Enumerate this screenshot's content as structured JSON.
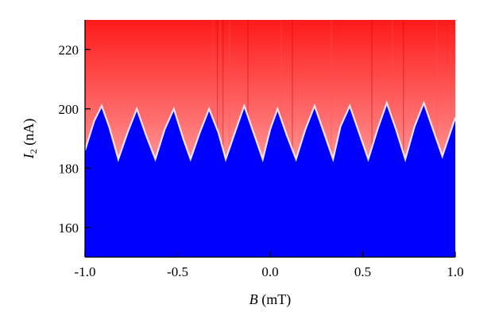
{
  "chart_data": {
    "type": "heatmap",
    "title": "",
    "xlabel": {
      "symbol": "B",
      "unit": " (mT)"
    },
    "ylabel": {
      "symbol": "I",
      "subscript": "2",
      "unit": " (nA)"
    },
    "xlim": [
      -1.0,
      1.0
    ],
    "ylim": [
      150,
      230
    ],
    "xticks": [
      -1.0,
      -0.5,
      0.0,
      0.5,
      1.0
    ],
    "xtick_labels": [
      "-1.0",
      "-0.5",
      "0.0",
      "0.5",
      "1.0"
    ],
    "yticks": [
      160,
      180,
      200,
      220
    ],
    "ytick_labels": [
      "160",
      "180",
      "200",
      "220"
    ],
    "colors": {
      "low": "#0000ff",
      "high": "#ff0000",
      "mid": "#ffffff"
    },
    "boundary": {
      "description": "switching current oscillation separating low (blue) and high (red) regions",
      "x": [
        -1.0,
        -0.95,
        -0.91,
        -0.87,
        -0.82,
        -0.77,
        -0.72,
        -0.67,
        -0.62,
        -0.57,
        -0.52,
        -0.47,
        -0.43,
        -0.38,
        -0.33,
        -0.28,
        -0.24,
        -0.19,
        -0.14,
        -0.09,
        -0.04,
        0.0,
        0.04,
        0.09,
        0.14,
        0.19,
        0.24,
        0.29,
        0.34,
        0.38,
        0.43,
        0.48,
        0.53,
        0.58,
        0.63,
        0.68,
        0.73,
        0.78,
        0.83,
        0.88,
        0.93,
        1.0
      ],
      "y": [
        186,
        196,
        201,
        194,
        183,
        192,
        200,
        191,
        183,
        193,
        200,
        190,
        183,
        192,
        200,
        192,
        183,
        192,
        201,
        192,
        183,
        193,
        200,
        191,
        183,
        193,
        201,
        192,
        183,
        194,
        201,
        192,
        183,
        193,
        202,
        193,
        183,
        194,
        202,
        193,
        184,
        197
      ]
    },
    "streaks": {
      "description": "faint vertical noise streaks",
      "x": [
        -0.31,
        -0.285,
        -0.27,
        -0.255,
        -0.22,
        -0.12,
        0.06,
        0.12,
        0.33,
        0.55,
        0.66,
        0.72,
        0.9
      ]
    }
  }
}
